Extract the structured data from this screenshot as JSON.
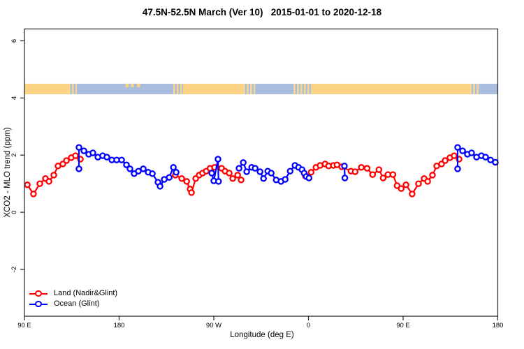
{
  "title": "47.5N-52.5N March (Ver 10)   2015-01-01 to 2020-12-18",
  "chart_data": {
    "type": "line",
    "title": "47.5N-52.5N March (Ver 10)   2015-01-01 to 2020-12-18",
    "xlabel": "Longitude (deg E)",
    "ylabel": "XCO2 - MLO trend (ppm)",
    "grid": false,
    "legend_position": "bottom-left-inside",
    "x_axis": {
      "range_deg_east_wrapped": [
        90,
        540
      ],
      "ticks": [
        90,
        180,
        270,
        360,
        450,
        540
      ],
      "tick_labels": [
        "90 E",
        "180",
        "90 W",
        "0",
        "90 E",
        "180"
      ]
    },
    "y_axis": {
      "range": [
        -3.6,
        6.4
      ],
      "ticks": [
        -2,
        0,
        2,
        4,
        6
      ],
      "tick_labels": [
        "-2",
        "0",
        "2",
        "4",
        "6"
      ]
    },
    "legend": [
      {
        "label": "Land (Nadir&Glint)",
        "color": "#ff0000"
      },
      {
        "label": "Ocean (Glint)",
        "color": "#0000ff"
      }
    ],
    "surface_band": {
      "description": "land/ocean strip along latitude band",
      "y_from_ppm": 4.13,
      "y_to_ppm": 4.5,
      "land_color": "#fbd384",
      "ocean_color": "#a9bede",
      "segments": [
        {
          "from": 90.0,
          "to": 131.9,
          "type": "land"
        },
        {
          "from": 131.9,
          "to": 139.8,
          "type": "mixed"
        },
        {
          "from": 139.8,
          "to": 231.5,
          "type": "ocean"
        },
        {
          "from": 231.5,
          "to": 240.8,
          "type": "mixed"
        },
        {
          "from": 240.8,
          "to": 298.0,
          "type": "land"
        },
        {
          "from": 298.0,
          "to": 309.3,
          "type": "mixed"
        },
        {
          "from": 309.3,
          "to": 345.8,
          "type": "ocean"
        },
        {
          "from": 345.8,
          "to": 362.5,
          "type": "mixed"
        },
        {
          "from": 362.5,
          "to": 513.3,
          "type": "land"
        },
        {
          "from": 513.3,
          "to": 522.6,
          "type": "mixed"
        },
        {
          "from": 522.6,
          "to": 540.0,
          "type": "ocean"
        }
      ],
      "islands": [
        {
          "from": 186,
          "to": 189
        },
        {
          "from": 191,
          "to": 194
        },
        {
          "from": 197,
          "to": 200
        }
      ]
    },
    "series": [
      {
        "name": "Land (Nadir&Glint)",
        "color": "#ff0000",
        "marker": "open-circle",
        "segments": [
          [
            [
              92.7,
              0.96
            ],
            [
              98.6,
              0.64
            ],
            [
              104.6,
              1.0
            ],
            [
              109.9,
              1.18
            ],
            [
              113.3,
              1.08
            ],
            [
              117.9,
              1.3
            ],
            [
              121.9,
              1.62
            ],
            [
              126.5,
              1.69
            ],
            [
              129.9,
              1.81
            ],
            [
              134.5,
              1.91
            ],
            [
              138.5,
              1.98
            ],
            [
              143.2,
              1.86
            ]
          ],
          [
            [
              233.5,
              1.3
            ],
            [
              239.5,
              1.18
            ],
            [
              244.2,
              1.08
            ],
            [
              247.5,
              0.81
            ],
            [
              248.8,
              0.69
            ],
            [
              252.8,
              1.18
            ],
            [
              256.1,
              1.3
            ],
            [
              259.4,
              1.37
            ],
            [
              262.8,
              1.44
            ],
            [
              266.5,
              1.54
            ],
            [
              270.7,
              1.57
            ],
            [
              277.4,
              1.54
            ],
            [
              280.7,
              1.44
            ],
            [
              284.7,
              1.37
            ],
            [
              288.0,
              1.18
            ],
            [
              292.7,
              1.3
            ],
            [
              296.0,
              1.13
            ]
          ],
          [
            [
              357.1,
              1.27
            ],
            [
              362.5,
              1.4
            ],
            [
              367.1,
              1.57
            ],
            [
              371.1,
              1.64
            ],
            [
              375.8,
              1.69
            ],
            [
              379.1,
              1.62
            ],
            [
              383.7,
              1.64
            ],
            [
              387.1,
              1.66
            ],
            [
              391.7,
              1.59
            ],
            [
              400.4,
              1.44
            ],
            [
              404.4,
              1.42
            ],
            [
              410.3,
              1.57
            ],
            [
              415.7,
              1.54
            ],
            [
              421.0,
              1.32
            ],
            [
              427.0,
              1.49
            ],
            [
              431.0,
              1.2
            ],
            [
              435.6,
              1.32
            ],
            [
              440.3,
              1.32
            ],
            [
              444.3,
              0.93
            ],
            [
              448.2,
              0.83
            ],
            [
              452.7,
              0.96
            ],
            [
              458.6,
              0.64
            ],
            [
              464.6,
              1.0
            ],
            [
              469.9,
              1.18
            ],
            [
              473.3,
              1.08
            ],
            [
              477.9,
              1.3
            ],
            [
              481.9,
              1.62
            ],
            [
              486.5,
              1.69
            ],
            [
              489.9,
              1.81
            ],
            [
              494.5,
              1.91
            ],
            [
              498.5,
              1.98
            ],
            [
              503.2,
              1.86
            ]
          ]
        ]
      },
      {
        "name": "Ocean (Glint)",
        "color": "#0000ff",
        "marker": "open-circle",
        "segments": [
          [
            [
              141.8,
              1.52
            ],
            [
              141.8,
              2.27
            ],
            [
              146.5,
              2.15
            ],
            [
              151.1,
              2.03
            ],
            [
              155.1,
              2.08
            ],
            [
              159.8,
              1.93
            ],
            [
              164.4,
              1.98
            ],
            [
              168.4,
              1.93
            ],
            [
              173.1,
              1.83
            ],
            [
              177.7,
              1.83
            ],
            [
              182.4,
              1.83
            ],
            [
              187.0,
              1.66
            ],
            [
              190.3,
              1.52
            ],
            [
              194.3,
              1.35
            ],
            [
              198.3,
              1.44
            ],
            [
              203.0,
              1.52
            ],
            [
              207.6,
              1.4
            ],
            [
              211.6,
              1.35
            ],
            [
              216.9,
              1.05
            ],
            [
              218.9,
              0.91
            ],
            [
              222.9,
              1.15
            ],
            [
              227.6,
              1.22
            ],
            [
              231.6,
              1.57
            ],
            [
              234.2,
              1.4
            ]
          ],
          [
            [
              268.1,
              1.37
            ],
            [
              270.0,
              1.1
            ],
            [
              274.0,
              1.86
            ],
            [
              274.5,
              1.08
            ]
          ],
          [
            [
              294.0,
              1.54
            ],
            [
              298.0,
              1.74
            ],
            [
              301.3,
              1.42
            ],
            [
              306.0,
              1.57
            ],
            [
              309.3,
              1.54
            ],
            [
              314.0,
              1.42
            ],
            [
              317.3,
              1.18
            ],
            [
              321.3,
              1.44
            ],
            [
              324.6,
              1.37
            ],
            [
              329.3,
              1.13
            ],
            [
              333.9,
              1.08
            ],
            [
              337.9,
              1.15
            ],
            [
              342.6,
              1.44
            ],
            [
              347.2,
              1.64
            ],
            [
              350.6,
              1.57
            ],
            [
              353.9,
              1.49
            ],
            [
              355.9,
              1.37
            ],
            [
              357.9,
              1.25
            ],
            [
              360.5,
              1.2
            ]
          ],
          [
            [
              394.2,
              1.62
            ],
            [
              394.6,
              1.2
            ]
          ],
          [
            [
              501.8,
              1.52
            ],
            [
              501.8,
              2.27
            ],
            [
              506.5,
              2.15
            ],
            [
              511.1,
              2.03
            ],
            [
              515.1,
              2.08
            ],
            [
              519.8,
              1.93
            ],
            [
              524.4,
              1.98
            ],
            [
              528.4,
              1.93
            ],
            [
              533.1,
              1.83
            ],
            [
              537.7,
              1.75
            ]
          ]
        ]
      }
    ]
  }
}
